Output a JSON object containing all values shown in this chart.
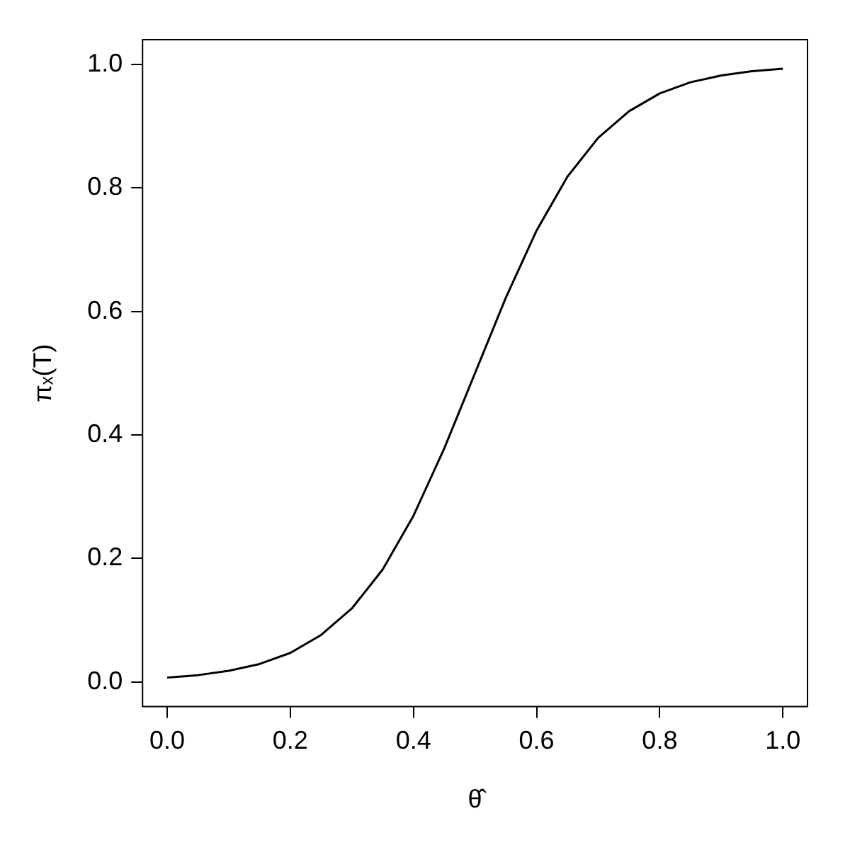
{
  "chart_data": {
    "type": "line",
    "xlabel": "θ̂",
    "ylabel": "πₓ(T)",
    "x": [
      0,
      0.05,
      0.1,
      0.15,
      0.2,
      0.25,
      0.3,
      0.35,
      0.4,
      0.45,
      0.5,
      0.55,
      0.6,
      0.65,
      0.7,
      0.75,
      0.8,
      0.85,
      0.9,
      0.95,
      1
    ],
    "series": [
      {
        "color": "#000000",
        "values": [
          0.007,
          0.011,
          0.018,
          0.029,
          0.047,
          0.076,
          0.119,
          0.182,
          0.269,
          0.378,
          0.5,
          0.622,
          0.731,
          0.818,
          0.881,
          0.924,
          0.953,
          0.971,
          0.982,
          0.989,
          0.993
        ]
      }
    ],
    "xlim": [
      -0.04,
      1.04
    ],
    "ylim": [
      -0.04,
      1.04
    ],
    "xticks": [
      {
        "value": 0,
        "label": "0.0"
      },
      {
        "value": 0.2,
        "label": "0.2"
      },
      {
        "value": 0.4,
        "label": "0.4"
      },
      {
        "value": 0.6,
        "label": "0.6"
      },
      {
        "value": 0.8,
        "label": "0.8"
      },
      {
        "value": 1,
        "label": "1.0"
      }
    ],
    "yticks": [
      {
        "value": 0,
        "label": "0.0"
      },
      {
        "value": 0.2,
        "label": "0.2"
      },
      {
        "value": 0.4,
        "label": "0.4"
      },
      {
        "value": 0.6,
        "label": "0.6"
      },
      {
        "value": 0.8,
        "label": "0.8"
      },
      {
        "value": 1,
        "label": "1.0"
      }
    ],
    "grid": false,
    "legend": false,
    "marker": "none",
    "line_style": "solid"
  }
}
